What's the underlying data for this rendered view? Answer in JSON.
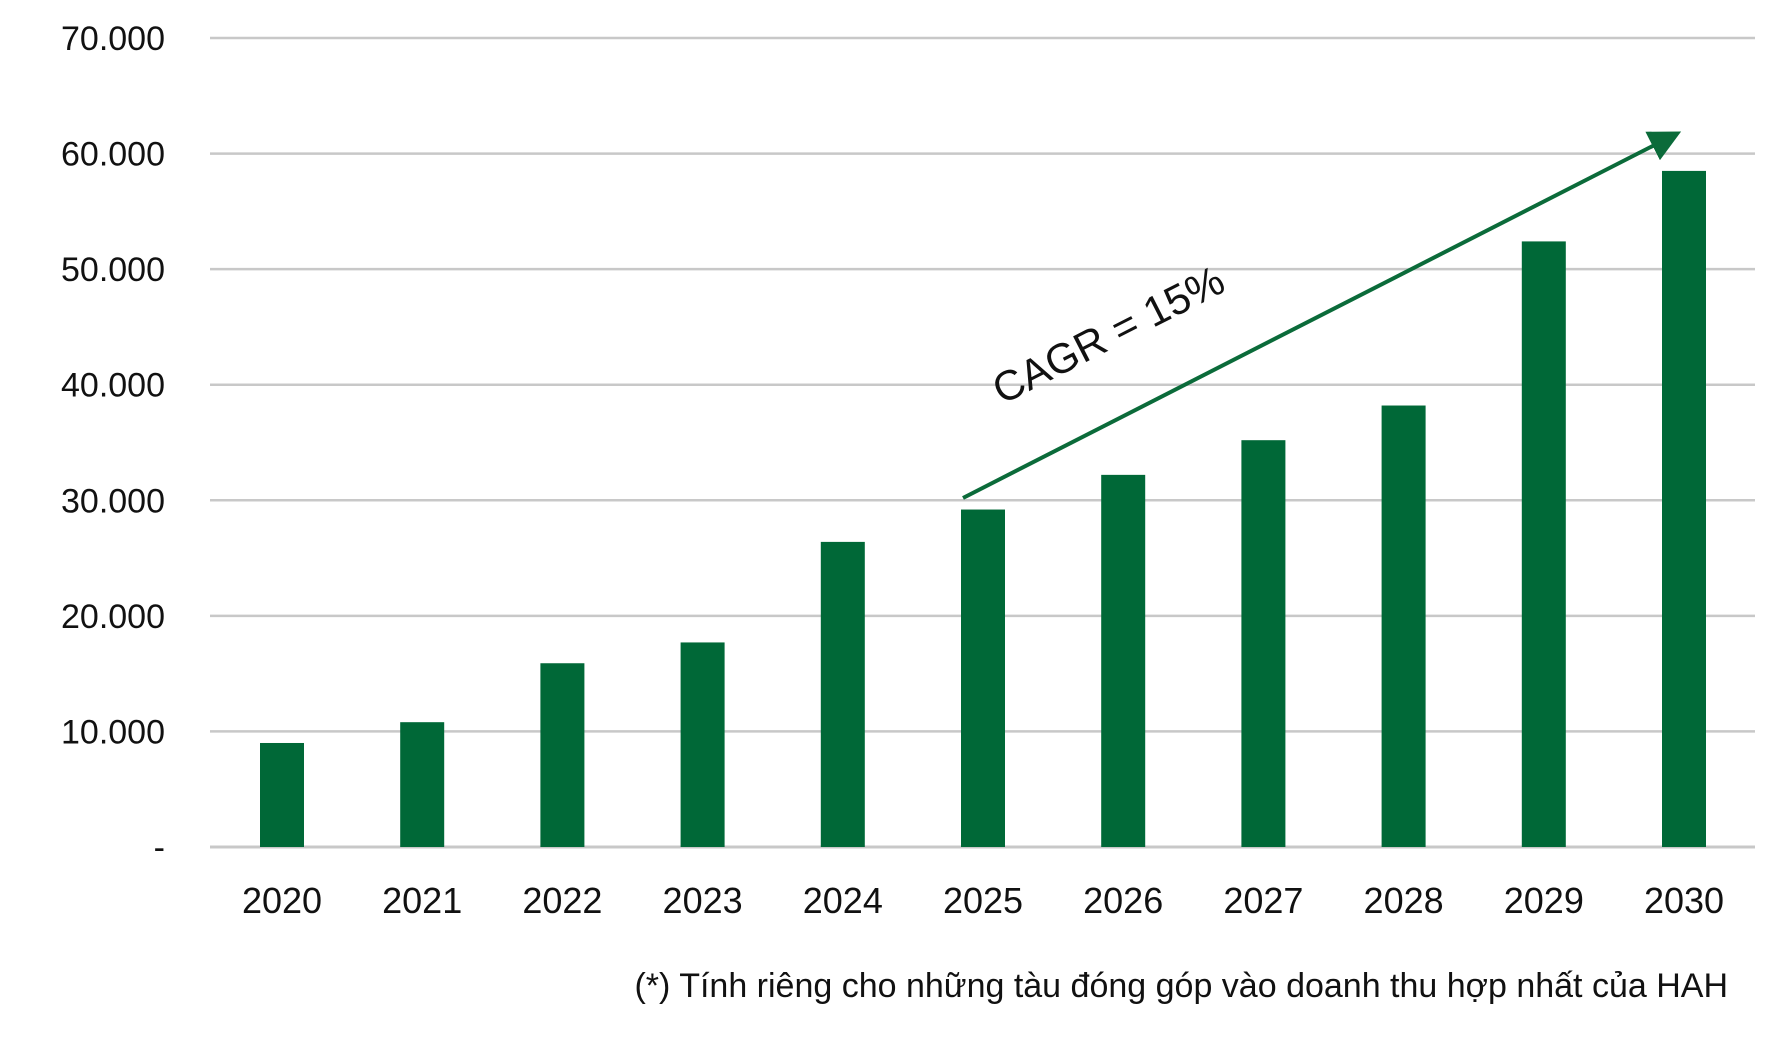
{
  "chart_data": {
    "type": "bar",
    "categories": [
      "2020",
      "2021",
      "2022",
      "2023",
      "2024",
      "2025",
      "2026",
      "2027",
      "2028",
      "2029",
      "2030"
    ],
    "values": [
      9000,
      10800,
      15900,
      17700,
      26400,
      29200,
      32200,
      35200,
      38200,
      52400,
      58500
    ],
    "ylim": [
      0,
      70000
    ],
    "yticks": [
      0,
      10000,
      20000,
      30000,
      40000,
      50000,
      60000,
      70000
    ],
    "ytick_labels": [
      "-",
      "10.000",
      "20.000",
      "30.000",
      "40.000",
      "50.000",
      "60.000",
      "70.000"
    ],
    "grid": true,
    "colors": {
      "bar": "#006837",
      "arrow": "#0b6b3a",
      "grid": "#c8c8c8"
    },
    "annotation": {
      "text": "CAGR = 15%",
      "arrow_from": {
        "category": "2025",
        "value": 30200
      },
      "arrow_to": {
        "category": "2030",
        "value": 61600
      }
    },
    "footnote": "(*) Tính riêng cho những tàu đóng góp vào doanh thu hợp nhất của HAH"
  }
}
